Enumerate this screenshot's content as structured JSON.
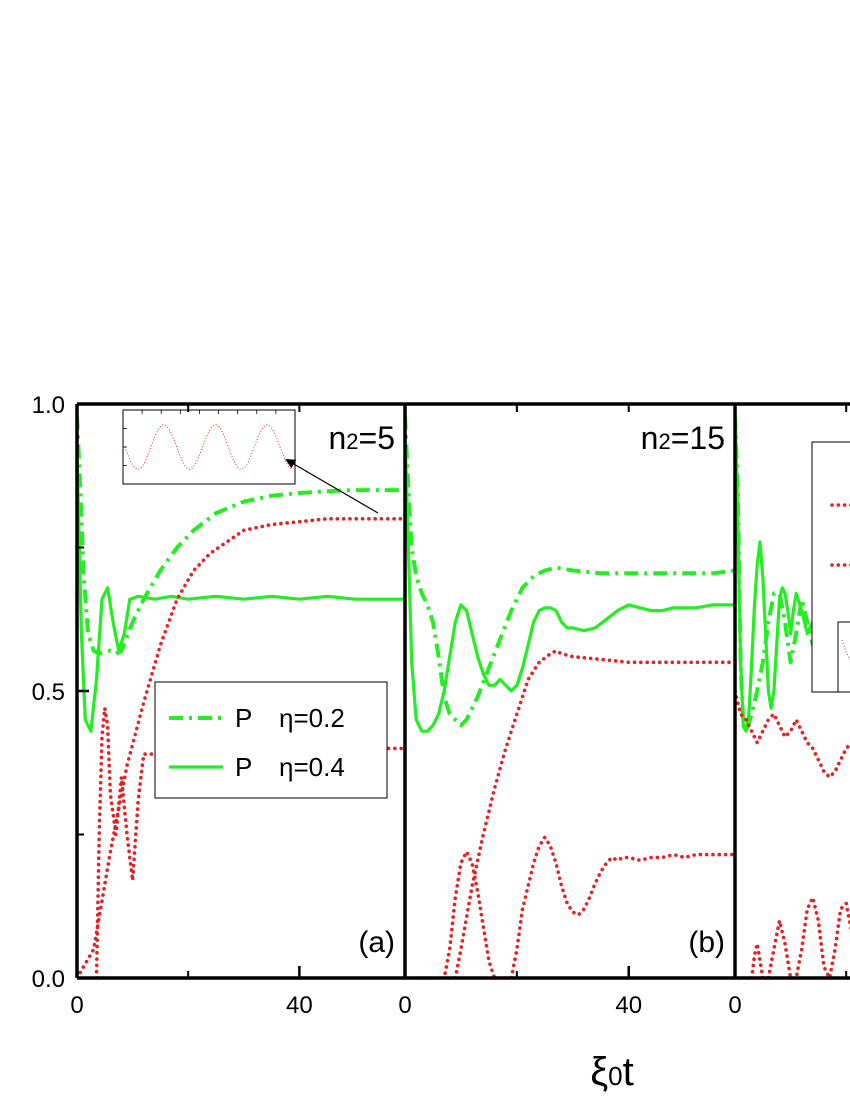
{
  "chart_data": {
    "type": "line",
    "xlabel_base": "ξ",
    "xlabel_sub": "0",
    "xlabel_tail": "t",
    "ylim": [
      0,
      1
    ],
    "yticks": [
      {
        "value": 0.0,
        "label": "0.0"
      },
      {
        "value": 0.5,
        "label": "0.5"
      },
      {
        "value": 1.0,
        "label": "1.0"
      }
    ],
    "colors": {
      "green": "#22ee22",
      "red": "#e82020",
      "axis": "#000000"
    },
    "panels": [
      {
        "id": "a",
        "xlim": [
          0,
          59
        ],
        "xticks": [
          {
            "value": 0,
            "label": "0"
          },
          {
            "value": 40,
            "label": "40"
          }
        ],
        "title_base": "n",
        "title_sub": "2",
        "title_tail": "=5",
        "letter": "(a)",
        "legend_partial": false,
        "legend": [
          {
            "symbol": "P",
            "label": "η=0.2",
            "style": "dashdot",
            "color": "green"
          },
          {
            "symbol": "P",
            "label": "η=0.4",
            "style": "solid",
            "color": "green"
          }
        ],
        "inset": {
          "style": "dotted",
          "color": "red",
          "y": [
            0.5,
            0.2,
            0.8,
            0.2,
            0.8,
            0.2,
            0.8,
            0.2,
            0.5
          ]
        },
        "series": [
          {
            "style": "dashdot",
            "color": "green",
            "x": [
              0,
              0.6,
              1.2,
              2,
              3,
              4,
              5,
              6,
              7,
              8,
              10,
              12,
              15,
              18,
              21,
              25,
              30,
              35,
              40,
              45,
              50,
              55,
              59
            ],
            "y": [
              0.98,
              0.85,
              0.7,
              0.6,
              0.57,
              0.565,
              0.57,
              0.57,
              0.565,
              0.57,
              0.62,
              0.66,
              0.71,
              0.75,
              0.78,
              0.81,
              0.83,
              0.84,
              0.845,
              0.848,
              0.85,
              0.85,
              0.85
            ]
          },
          {
            "style": "solid",
            "color": "green",
            "x": [
              0,
              0.8,
              1.5,
              2.5,
              3.5,
              4.5,
              5.5,
              6.5,
              7.5,
              8.5,
              9.5,
              11,
              14,
              17,
              20,
              25,
              30,
              35,
              40,
              45,
              50,
              55,
              59
            ],
            "y": [
              0.92,
              0.6,
              0.45,
              0.43,
              0.52,
              0.66,
              0.68,
              0.62,
              0.57,
              0.6,
              0.66,
              0.665,
              0.66,
              0.665,
              0.66,
              0.665,
              0.66,
              0.665,
              0.66,
              0.665,
              0.66,
              0.66,
              0.66
            ]
          },
          {
            "style": "dotted",
            "color": "red",
            "x": [
              0,
              3,
              6,
              9,
              12,
              15,
              18,
              21,
              24,
              27,
              30,
              35,
              40,
              45,
              50,
              55,
              59
            ],
            "y": [
              0.0,
              0.05,
              0.22,
              0.37,
              0.48,
              0.58,
              0.66,
              0.71,
              0.74,
              0.76,
              0.78,
              0.79,
              0.795,
              0.8,
              0.8,
              0.8,
              0.8
            ]
          },
          {
            "style": "dotted",
            "color": "red",
            "x": [
              3.5,
              4,
              4.5,
              5,
              5.5,
              6,
              7,
              8,
              9,
              10,
              11,
              12,
              14,
              16,
              18,
              20,
              25,
              30,
              35,
              40,
              45,
              50,
              55,
              59
            ],
            "y": [
              0.0,
              0.25,
              0.42,
              0.47,
              0.44,
              0.32,
              0.25,
              0.35,
              0.25,
              0.17,
              0.31,
              0.39,
              0.39,
              0.395,
              0.4,
              0.4,
              0.405,
              0.395,
              0.405,
              0.4,
              0.4,
              0.4,
              0.4,
              0.4
            ]
          }
        ]
      },
      {
        "id": "b",
        "xlim": [
          0,
          59
        ],
        "xticks": [
          {
            "value": 0,
            "label": "0"
          },
          {
            "value": 40,
            "label": "40"
          }
        ],
        "title_base": "n",
        "title_sub": "2",
        "title_tail": "=15",
        "letter": "(b)",
        "legend_partial": false,
        "legend": [],
        "series": [
          {
            "style": "dashdot",
            "color": "green",
            "x": [
              0,
              0.6,
              1.2,
              2,
              3,
              4,
              5,
              6,
              7,
              8,
              9,
              10,
              11,
              12,
              13,
              15,
              17,
              19,
              21,
              23,
              25,
              27,
              30,
              35,
              40,
              45,
              50,
              55,
              59
            ],
            "y": [
              0.98,
              0.85,
              0.75,
              0.7,
              0.67,
              0.65,
              0.62,
              0.56,
              0.49,
              0.46,
              0.45,
              0.44,
              0.45,
              0.47,
              0.49,
              0.54,
              0.59,
              0.64,
              0.68,
              0.7,
              0.71,
              0.715,
              0.71,
              0.705,
              0.705,
              0.705,
              0.705,
              0.705,
              0.71
            ]
          },
          {
            "style": "solid",
            "color": "green",
            "x": [
              0,
              0.6,
              1.2,
              2,
              3,
              4,
              5,
              6,
              7,
              8,
              9,
              10,
              11,
              12,
              13,
              14,
              15,
              16,
              17,
              18,
              19,
              20,
              21,
              22,
              23,
              24,
              25,
              26,
              27,
              28,
              29,
              30,
              32,
              34,
              36,
              38,
              40,
              42,
              44,
              46,
              48,
              50,
              52,
              55,
              59
            ],
            "y": [
              0.95,
              0.75,
              0.55,
              0.45,
              0.43,
              0.43,
              0.44,
              0.46,
              0.5,
              0.56,
              0.62,
              0.65,
              0.64,
              0.6,
              0.56,
              0.53,
              0.51,
              0.51,
              0.52,
              0.51,
              0.5,
              0.51,
              0.54,
              0.58,
              0.62,
              0.64,
              0.645,
              0.645,
              0.64,
              0.62,
              0.61,
              0.61,
              0.605,
              0.61,
              0.625,
              0.64,
              0.65,
              0.645,
              0.64,
              0.64,
              0.645,
              0.645,
              0.645,
              0.65,
              0.65
            ]
          },
          {
            "style": "dotted",
            "color": "red",
            "x": [
              9,
              10,
              12,
              14,
              16,
              18,
              20,
              22,
              24,
              26,
              27,
              28,
              30,
              35,
              40,
              45,
              50,
              55,
              59
            ],
            "y": [
              0.0,
              0.05,
              0.16,
              0.25,
              0.33,
              0.4,
              0.46,
              0.52,
              0.55,
              0.565,
              0.57,
              0.565,
              0.56,
              0.555,
              0.55,
              0.55,
              0.55,
              0.55,
              0.55
            ]
          },
          {
            "style": "dotted",
            "color": "red",
            "x": [
              0,
              7,
              8,
              9,
              10,
              11,
              12,
              13,
              14,
              15,
              16,
              17,
              18,
              19,
              20,
              21,
              22,
              23,
              24,
              25,
              26,
              27,
              28,
              29,
              30,
              31,
              32,
              33,
              34,
              35,
              36,
              37,
              38,
              39,
              40,
              42,
              44,
              46,
              48,
              50,
              52,
              54,
              56,
              59
            ],
            "y": [
              0.0,
              0.0,
              0.05,
              0.14,
              0.2,
              0.22,
              0.2,
              0.15,
              0.09,
              0.03,
              0.0,
              0.0,
              0.0,
              0.0,
              0.05,
              0.12,
              0.16,
              0.2,
              0.23,
              0.245,
              0.23,
              0.2,
              0.16,
              0.13,
              0.115,
              0.11,
              0.12,
              0.14,
              0.165,
              0.185,
              0.2,
              0.21,
              0.205,
              0.21,
              0.21,
              0.205,
              0.21,
              0.21,
              0.215,
              0.21,
              0.215,
              0.215,
              0.215,
              0.215
            ]
          }
        ]
      },
      {
        "id": "c",
        "xlim": [
          0,
          59
        ],
        "xticks": [
          {
            "value": 0,
            "label": "0"
          }
        ],
        "title_base": "",
        "title_sub": "",
        "title_tail": "",
        "letter": "",
        "legend_partial": true,
        "legend": [
          {
            "symbol": "",
            "label": "",
            "style": "dotted",
            "color": "red"
          },
          {
            "symbol": "",
            "label": "",
            "style": "dotted",
            "color": "red"
          }
        ],
        "series": [
          {
            "style": "dashdot",
            "color": "green",
            "x": [
              0,
              0.5,
              1,
              1.5,
              2,
              3,
              4,
              5,
              6,
              7,
              8,
              9,
              10,
              11,
              12,
              13,
              14,
              15,
              16,
              17,
              18,
              19,
              20,
              21,
              22
            ],
            "y": [
              0.98,
              0.85,
              0.55,
              0.44,
              0.43,
              0.46,
              0.5,
              0.55,
              0.62,
              0.67,
              0.67,
              0.62,
              0.55,
              0.6,
              0.66,
              0.62,
              0.58,
              0.6,
              0.66,
              0.68,
              0.66,
              0.64,
              0.66,
              0.67,
              0.66
            ]
          },
          {
            "style": "solid",
            "color": "green",
            "x": [
              0,
              0.5,
              1,
              1.5,
              2,
              2.5,
              3,
              3.5,
              4,
              4.5,
              5,
              5.5,
              6,
              6.5,
              7,
              7.5,
              8,
              8.5,
              9,
              9.5,
              10,
              10.5,
              11,
              12,
              13,
              14,
              15,
              16,
              17,
              18,
              19,
              20,
              21,
              22
            ],
            "y": [
              0.99,
              0.8,
              0.55,
              0.44,
              0.43,
              0.46,
              0.55,
              0.65,
              0.72,
              0.76,
              0.7,
              0.6,
              0.5,
              0.47,
              0.5,
              0.58,
              0.66,
              0.68,
              0.67,
              0.64,
              0.6,
              0.64,
              0.67,
              0.64,
              0.6,
              0.62,
              0.66,
              0.69,
              0.685,
              0.67,
              0.66,
              0.65,
              0.655,
              0.65
            ]
          },
          {
            "style": "dotted",
            "color": "red",
            "x": [
              0,
              1,
              2,
              3,
              4,
              5,
              6,
              7,
              8,
              9,
              10,
              11,
              12,
              13,
              14,
              15,
              16,
              17,
              18,
              19,
              20,
              21,
              22
            ],
            "y": [
              0.5,
              0.46,
              0.45,
              0.43,
              0.41,
              0.43,
              0.45,
              0.46,
              0.44,
              0.42,
              0.43,
              0.45,
              0.43,
              0.41,
              0.4,
              0.38,
              0.36,
              0.35,
              0.36,
              0.38,
              0.4,
              0.41,
              0.41
            ]
          },
          {
            "style": "dotted",
            "color": "red",
            "x": [
              3,
              3.5,
              4,
              4.5,
              5,
              5.5,
              6,
              7,
              8,
              9,
              10,
              11,
              12,
              13,
              14,
              15,
              16,
              17,
              18,
              19,
              20,
              21,
              22
            ],
            "y": [
              0.0,
              0.04,
              0.06,
              0.03,
              0.0,
              0.0,
              0.0,
              0.05,
              0.1,
              0.06,
              0.0,
              0.0,
              0.05,
              0.12,
              0.14,
              0.1,
              0.02,
              0.0,
              0.05,
              0.12,
              0.13,
              0.08,
              0.04
            ]
          }
        ]
      }
    ]
  }
}
